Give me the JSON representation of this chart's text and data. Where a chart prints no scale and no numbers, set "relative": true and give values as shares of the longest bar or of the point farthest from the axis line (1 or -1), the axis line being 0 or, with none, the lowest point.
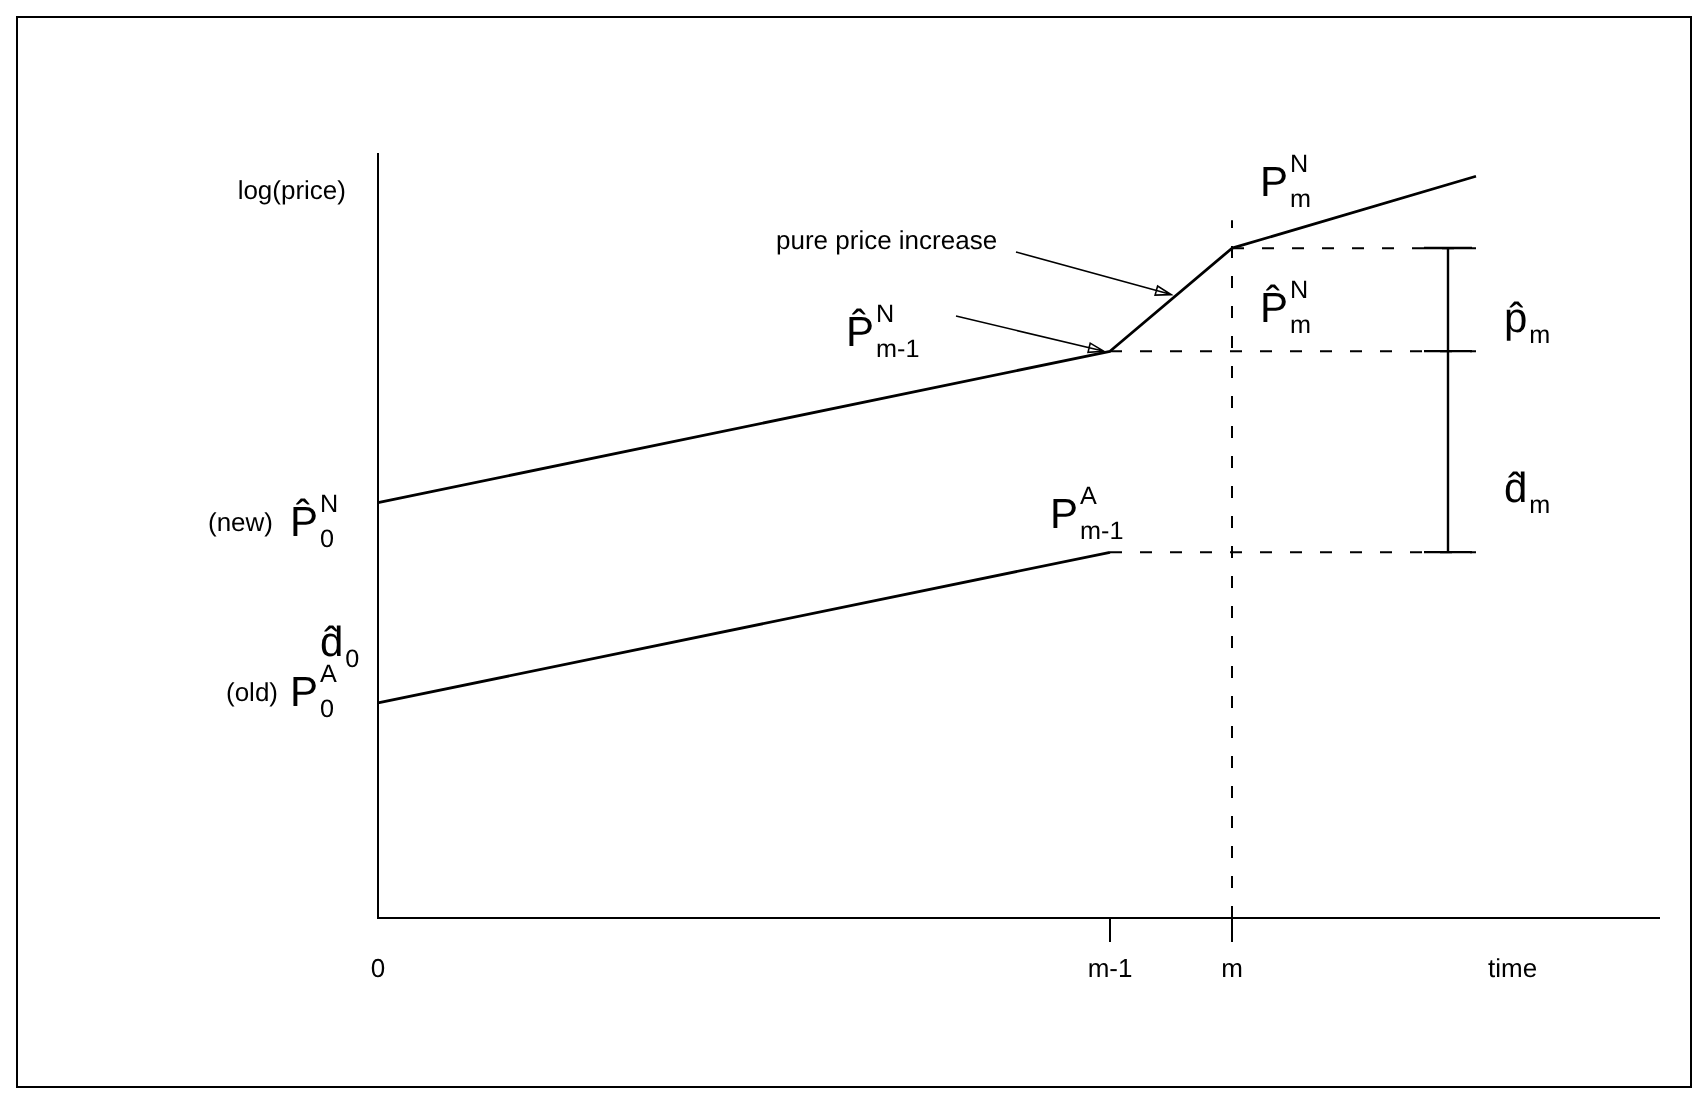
{
  "chart_data": {
    "type": "line",
    "relative": true,
    "ylabel": "log(price)",
    "xlabel": "time",
    "categories": [
      "0",
      null,
      null,
      null,
      null,
      null,
      "m-1",
      "m",
      null,
      null,
      null
    ],
    "series": [
      {
        "color": "#000000",
        "values": [
          0.56,
          null,
          null,
          null,
          null,
          null,
          0.764,
          0.903,
          null,
          1.0,
          null
        ]
      },
      {
        "color": "#000000",
        "values": [
          0.29,
          null,
          null,
          null,
          null,
          null,
          0.493,
          null,
          null,
          null,
          null
        ]
      },
      {
        "color": "#000000",
        "line_style": "dashed",
        "values": [
          null,
          null,
          null,
          null,
          null,
          null,
          null,
          0.903,
          null,
          0.903,
          null
        ]
      },
      {
        "color": "#000000",
        "line_style": "dashed",
        "values": [
          null,
          null,
          null,
          null,
          null,
          null,
          0.764,
          null,
          null,
          0.764,
          null
        ]
      },
      {
        "color": "#000000",
        "line_style": "dashed",
        "values": [
          null,
          null,
          null,
          null,
          null,
          null,
          0.493,
          null,
          null,
          0.493,
          null
        ]
      }
    ],
    "ref_lines": [
      {
        "axis": "x",
        "value": "m",
        "line_style": "dashed",
        "color": "#000000"
      }
    ],
    "annotations": [
      "pure price increase",
      "P̂$_{m-1}$$^{N}$",
      "P$_{m}$$^{N}$",
      "P̂$_{m}$$^{N}$",
      "P$_{m-1}$$^{A}$",
      "p̂$_{m}$",
      "d̂$_{m}$",
      "(new)",
      "P̂$_{0}$$^{N}$",
      "d̂$_{0}$",
      "(old)",
      "P$_{0}$$^{A}$"
    ],
    "marker": "none",
    "grid": false,
    "legend": false
  }
}
